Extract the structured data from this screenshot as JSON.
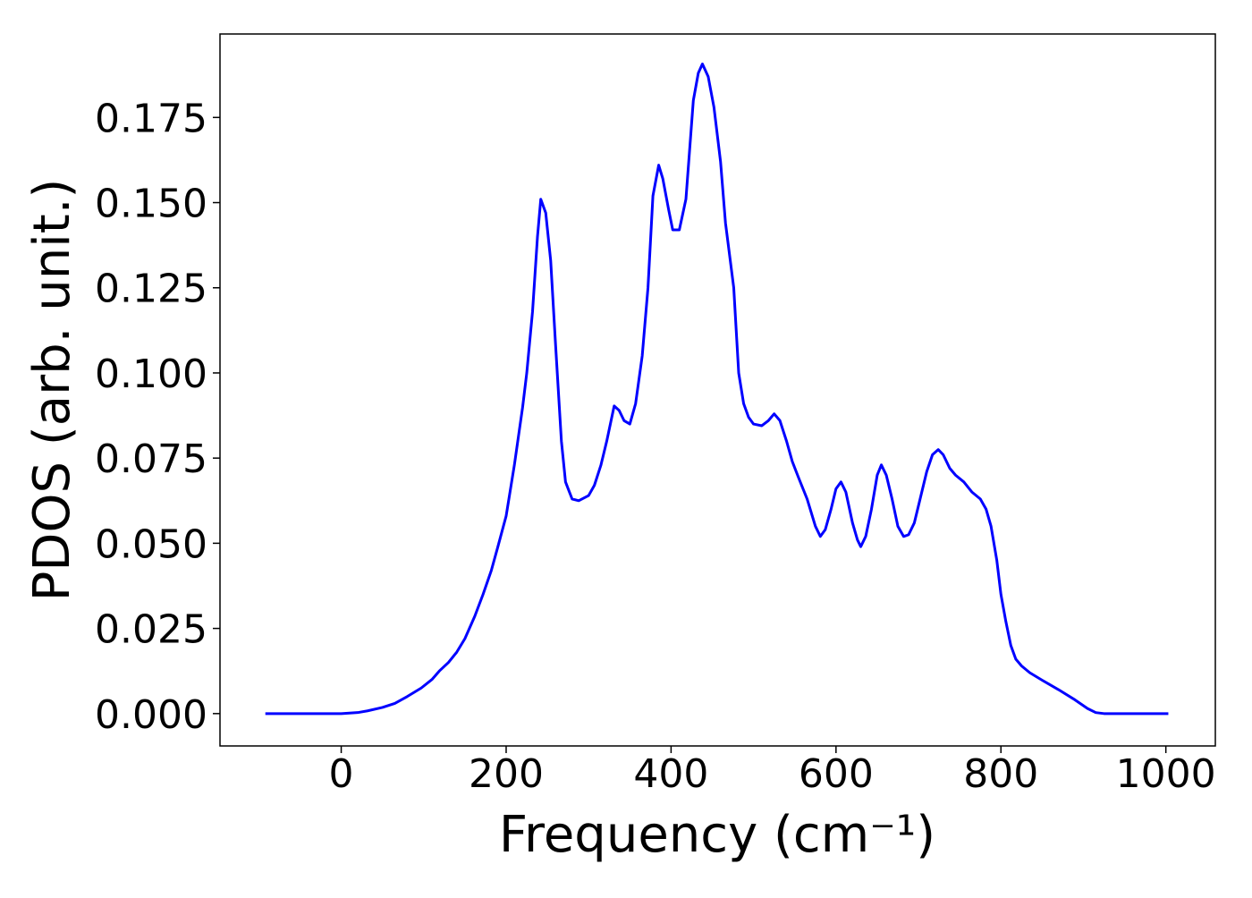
{
  "chart_data": {
    "type": "line",
    "x_label": "Frequency (cm⁻¹)",
    "y_label": "PDOS (arb. unit.)",
    "xlim": [
      -147,
      1060
    ],
    "ylim": [
      -0.0095,
      0.1995
    ],
    "xticks": [
      0,
      200,
      400,
      600,
      800,
      1000
    ],
    "yticks": [
      {
        "value": 0,
        "label": "0.000"
      },
      {
        "value": 0.025,
        "label": "0.025"
      },
      {
        "value": 0.05,
        "label": "0.050"
      },
      {
        "value": 0.075,
        "label": "0.075"
      },
      {
        "value": 0.1,
        "label": "0.100"
      },
      {
        "value": 0.125,
        "label": "0.125"
      },
      {
        "value": 0.15,
        "label": "0.150"
      },
      {
        "value": 0.175,
        "label": "0.175"
      }
    ],
    "x": [
      -92,
      0,
      20,
      32,
      50,
      65,
      80,
      97,
      110,
      119,
      130,
      140,
      150,
      162,
      172,
      182,
      190,
      200,
      210,
      220,
      225,
      232,
      238,
      242,
      248,
      254,
      260,
      267,
      272,
      280,
      288,
      300,
      307,
      315,
      322,
      331,
      337,
      343,
      350,
      357,
      365,
      372,
      378,
      385,
      390,
      397,
      402,
      410,
      418,
      427,
      433,
      438,
      445,
      452,
      460,
      466,
      476,
      482,
      488,
      494,
      500,
      510,
      518,
      525,
      532,
      540,
      547,
      555,
      565,
      575,
      581,
      587,
      594,
      600,
      606,
      612,
      620,
      626,
      630,
      636,
      643,
      650,
      655,
      661,
      668,
      675,
      682,
      688,
      695,
      702,
      710,
      717,
      724,
      730,
      738,
      745,
      755,
      765,
      775,
      782,
      788,
      795,
      800,
      806,
      812,
      818,
      825,
      835,
      850,
      870,
      890,
      905,
      915,
      925,
      1003
    ],
    "series": [
      {
        "name": "PDOS",
        "color": "#0000ff",
        "values": [
          0,
          0,
          0.0003,
          0.0008,
          0.0018,
          0.003,
          0.005,
          0.0075,
          0.01,
          0.0125,
          0.015,
          0.018,
          0.022,
          0.0286,
          0.035,
          0.042,
          0.049,
          0.058,
          0.073,
          0.09,
          0.1,
          0.118,
          0.14,
          0.151,
          0.147,
          0.133,
          0.108,
          0.08,
          0.068,
          0.063,
          0.0625,
          0.064,
          0.067,
          0.073,
          0.08,
          0.0903,
          0.089,
          0.086,
          0.085,
          0.091,
          0.105,
          0.125,
          0.152,
          0.161,
          0.157,
          0.148,
          0.142,
          0.142,
          0.151,
          0.18,
          0.188,
          0.1907,
          0.187,
          0.178,
          0.162,
          0.144,
          0.125,
          0.1,
          0.091,
          0.087,
          0.085,
          0.0845,
          0.086,
          0.088,
          0.086,
          0.08,
          0.074,
          0.069,
          0.063,
          0.055,
          0.052,
          0.054,
          0.06,
          0.066,
          0.068,
          0.065,
          0.056,
          0.051,
          0.049,
          0.052,
          0.06,
          0.07,
          0.073,
          0.07,
          0.063,
          0.055,
          0.052,
          0.0525,
          0.056,
          0.063,
          0.071,
          0.076,
          0.0775,
          0.076,
          0.072,
          0.07,
          0.068,
          0.065,
          0.063,
          0.06,
          0.055,
          0.045,
          0.035,
          0.027,
          0.02,
          0.016,
          0.014,
          0.012,
          0.0098,
          0.007,
          0.004,
          0.0015,
          0.0003,
          0,
          0
        ]
      }
    ]
  }
}
